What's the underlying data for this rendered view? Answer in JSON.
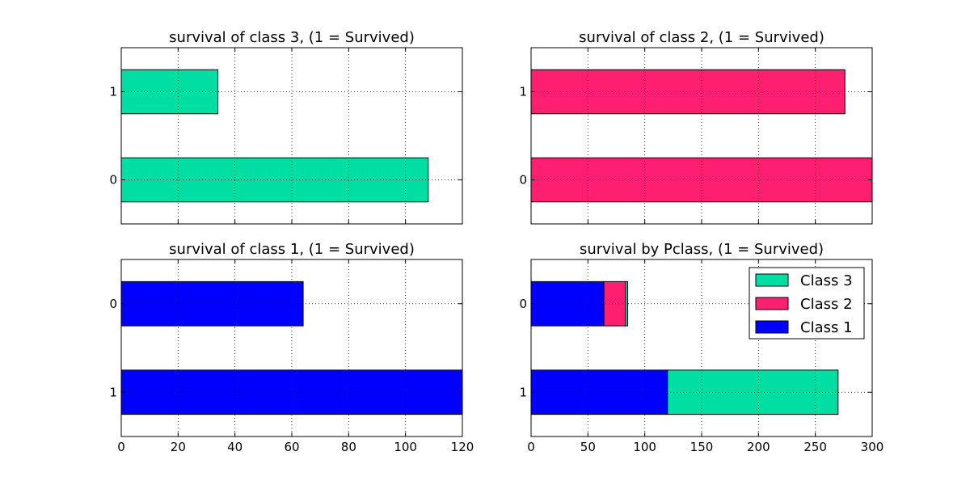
{
  "chart_data": [
    {
      "type": "bar",
      "orientation": "horizontal",
      "title": "survival of class 3, (1 = Survived)",
      "categories": [
        "0",
        "1"
      ],
      "series": [
        {
          "color": "#00dea3",
          "values": [
            108,
            34
          ]
        }
      ],
      "xlim": [
        0,
        120
      ],
      "xticks": [
        "0",
        "20",
        "40",
        "60",
        "80",
        "100",
        "120"
      ],
      "show_xtick_labels": false,
      "grid": true
    },
    {
      "type": "bar",
      "orientation": "horizontal",
      "title": "survival of class 2, (1 = Survived)",
      "categories": [
        "0",
        "1"
      ],
      "series": [
        {
          "color": "#ff1f71",
          "values": [
            300,
            276
          ]
        }
      ],
      "xlim": [
        0,
        300
      ],
      "xticks": [
        "0",
        "50",
        "100",
        "150",
        "200",
        "250",
        "300"
      ],
      "show_xtick_labels": false,
      "grid": true
    },
    {
      "type": "bar",
      "orientation": "horizontal",
      "title": "survival of class 1, (1 = Survived)",
      "categories": [
        "1",
        "0"
      ],
      "series": [
        {
          "color": "#0000ff",
          "values": [
            120,
            64
          ]
        }
      ],
      "xlim": [
        0,
        120
      ],
      "xticks": [
        "0",
        "20",
        "40",
        "60",
        "80",
        "100",
        "120"
      ],
      "show_xtick_labels": true,
      "grid": true
    },
    {
      "type": "bar",
      "orientation": "horizontal",
      "stacked": true,
      "title": "survival by Pclass, (1 = Survived)",
      "categories": [
        "1",
        "0"
      ],
      "series": [
        {
          "name": "Class 1",
          "color": "#0000ff",
          "values": [
            120,
            64
          ]
        },
        {
          "name": "Class 2",
          "color": "#ff1f71",
          "values": [
            0,
            19
          ]
        },
        {
          "name": "Class 3",
          "color": "#00dea3",
          "values": [
            150,
            2
          ]
        }
      ],
      "xlim": [
        0,
        300
      ],
      "xticks": [
        "0",
        "50",
        "100",
        "150",
        "200",
        "250",
        "300"
      ],
      "show_xtick_labels": true,
      "grid": true,
      "legend": {
        "position": "top-right",
        "entries": [
          {
            "label": "Class 3",
            "color": "#00dea3"
          },
          {
            "label": "Class 2",
            "color": "#ff1f71"
          },
          {
            "label": "Class 1",
            "color": "#0000ff"
          }
        ]
      }
    }
  ]
}
